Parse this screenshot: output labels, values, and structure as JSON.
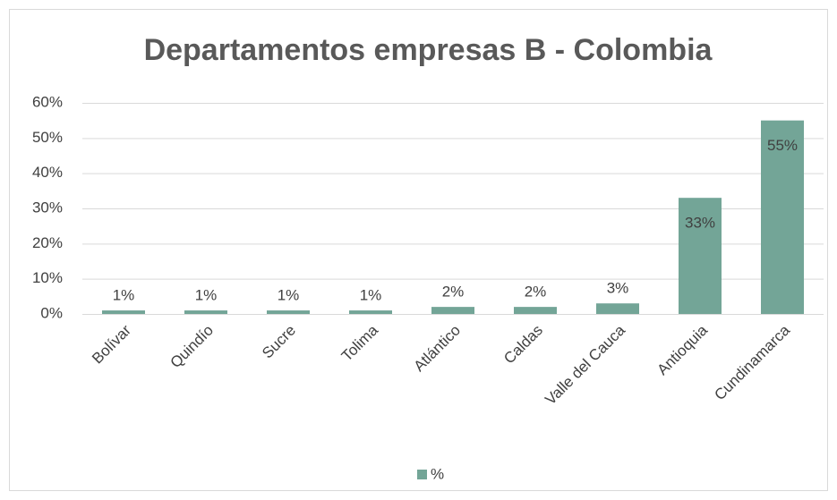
{
  "chart_data": {
    "type": "bar",
    "title": "Departamentos empresas B - Colombia",
    "categories": [
      "Bolívar",
      "Quindío",
      "Sucre",
      "Tolima",
      "Atlántico",
      "Caldas",
      "Valle del Cauca",
      "Antioquia",
      "Cundinamarca"
    ],
    "series": [
      {
        "name": "%",
        "color": "#73a597",
        "values": [
          1,
          1,
          1,
          1,
          2,
          2,
          3,
          33,
          55
        ],
        "value_labels": [
          "1%",
          "1%",
          "1%",
          "1%",
          "2%",
          "2%",
          "3%",
          "33%",
          "55%"
        ]
      }
    ],
    "ylim": [
      0,
      60
    ],
    "yticks": [
      {
        "value": 0,
        "label": "0%"
      },
      {
        "value": 10,
        "label": "10%"
      },
      {
        "value": 20,
        "label": "20%"
      },
      {
        "value": 30,
        "label": "30%"
      },
      {
        "value": 40,
        "label": "40%"
      },
      {
        "value": 50,
        "label": "50%"
      },
      {
        "value": 60,
        "label": "60%"
      }
    ],
    "grid": true,
    "legend": "bottom"
  }
}
